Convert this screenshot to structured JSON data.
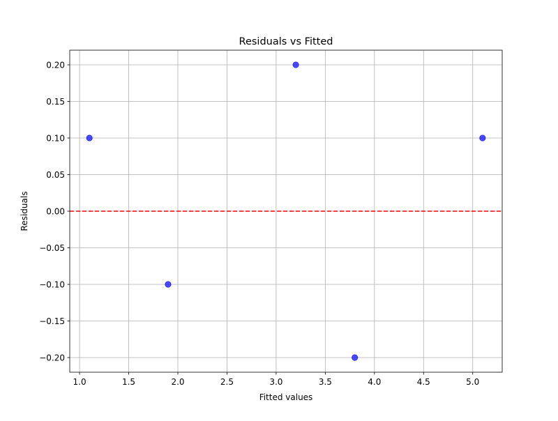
{
  "chart_data": {
    "type": "scatter",
    "title": "Residuals vs Fitted",
    "xlabel": "Fitted values",
    "ylabel": "Residuals",
    "xlim": [
      0.9,
      5.3
    ],
    "ylim": [
      -0.22,
      0.22
    ],
    "x_ticks": [
      1.0,
      1.5,
      2.0,
      2.5,
      3.0,
      3.5,
      4.0,
      4.5,
      5.0
    ],
    "x_tick_labels": [
      "1.0",
      "1.5",
      "2.0",
      "2.5",
      "3.0",
      "3.5",
      "4.0",
      "4.5",
      "5.0"
    ],
    "y_ticks": [
      -0.2,
      -0.15,
      -0.1,
      -0.05,
      0.0,
      0.05,
      0.1,
      0.15,
      0.2
    ],
    "y_tick_labels": [
      "−0.20",
      "−0.15",
      "−0.10",
      "−0.05",
      "0.00",
      "0.05",
      "0.10",
      "0.15",
      "0.20"
    ],
    "grid": true,
    "series": [
      {
        "x": [
          1.1,
          1.9,
          3.2,
          3.8,
          5.1
        ],
        "y": [
          0.1,
          -0.1,
          0.2,
          -0.2,
          0.1
        ],
        "color": "#0000ff"
      }
    ],
    "reference_line": {
      "y": 0.0,
      "style": "dashed",
      "color": "#ff0000"
    }
  }
}
